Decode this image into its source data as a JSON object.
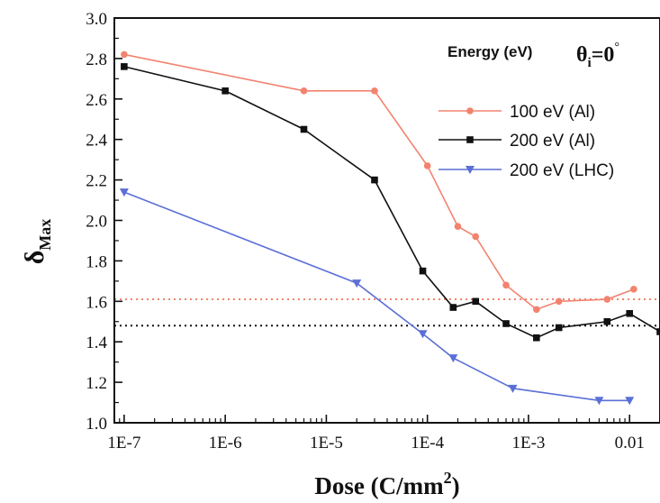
{
  "chart_data": {
    "type": "line",
    "x_scale": "log",
    "xlim": [
      8e-08,
      0.02
    ],
    "ylim": [
      1.0,
      3.0
    ],
    "x_ticks": [
      {
        "value": 1e-07,
        "label": "1E-7"
      },
      {
        "value": 1e-06,
        "label": "1E-6"
      },
      {
        "value": 1e-05,
        "label": "1E-5"
      },
      {
        "value": 0.0001,
        "label": "1E-4"
      },
      {
        "value": 0.001,
        "label": "1E-3"
      },
      {
        "value": 0.01,
        "label": "0.01"
      }
    ],
    "y_ticks": [
      {
        "value": 1.0,
        "label": "1.0"
      },
      {
        "value": 1.2,
        "label": "1.2"
      },
      {
        "value": 1.4,
        "label": "1.4"
      },
      {
        "value": 1.6,
        "label": "1.6"
      },
      {
        "value": 1.8,
        "label": "1.8"
      },
      {
        "value": 2.0,
        "label": "2.0"
      },
      {
        "value": 2.2,
        "label": "2.2"
      },
      {
        "value": 2.4,
        "label": "2.4"
      },
      {
        "value": 2.6,
        "label": "2.6"
      },
      {
        "value": 2.8,
        "label": "2.8"
      },
      {
        "value": 3.0,
        "label": "3.0"
      }
    ],
    "xlabel": {
      "main": "Dose (C/mm",
      "sup": "2",
      "tail": ")"
    },
    "ylabel": {
      "main": "δ",
      "sub": "Max"
    },
    "legend": {
      "title": "Energy (eV)",
      "angle_symbol": "θ",
      "angle_sub": "i",
      "angle_value": "=0",
      "angle_degree": "°",
      "placement": "top-right"
    },
    "series": [
      {
        "name": "100 eV (Al)",
        "color": "#f2836f",
        "marker": "circle",
        "x": [
          1e-07,
          6e-06,
          3e-05,
          0.0001,
          0.0002,
          0.0003,
          0.0006,
          0.0012,
          0.002,
          0.006,
          0.011
        ],
        "y": [
          2.82,
          2.64,
          2.64,
          2.27,
          1.97,
          1.92,
          1.68,
          1.56,
          1.6,
          1.61,
          1.66
        ]
      },
      {
        "name": "200 eV (Al)",
        "color": "#111111",
        "marker": "square",
        "x": [
          1e-07,
          1e-06,
          6e-06,
          3e-05,
          9e-05,
          0.00018,
          0.0003,
          0.0006,
          0.0012,
          0.002,
          0.006,
          0.01,
          0.02
        ],
        "y": [
          2.76,
          2.64,
          2.45,
          2.2,
          1.75,
          1.57,
          1.6,
          1.49,
          1.42,
          1.47,
          1.5,
          1.54,
          1.45
        ]
      },
      {
        "name": "200 eV (LHC)",
        "color": "#5b6fd6",
        "marker": "triangle-down",
        "x": [
          1e-07,
          2e-05,
          9e-05,
          0.00018,
          0.0007,
          0.005,
          0.01
        ],
        "y": [
          2.14,
          1.69,
          1.44,
          1.32,
          1.17,
          1.11,
          1.11
        ]
      }
    ],
    "reference_lines": [
      {
        "y": 1.61,
        "color": "#f2836f",
        "style": "dotted"
      },
      {
        "y": 1.48,
        "color": "#111111",
        "style": "dotted"
      }
    ]
  }
}
